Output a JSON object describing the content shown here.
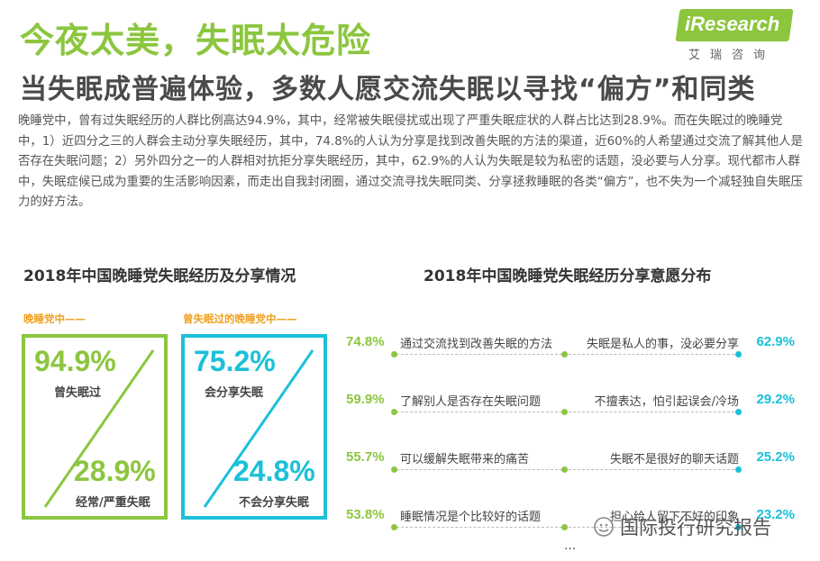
{
  "header": {
    "title": "今夜太美，失眠太危险",
    "subtitle": "当失眠成普遍体验，多数人愿交流失眠以寻找“偏方”和同类"
  },
  "logo": {
    "text": "iResearch",
    "sub": "艾瑞咨询"
  },
  "paragraph": "晚睡党中，曾有过失眠经历的人群比例高达94.9%，其中，经常被失眠侵扰或出现了严重失眠症状的人群占比达到28.9%。而在失眠过的晚睡党中，1）近四分之三的人群会主动分享失眠经历，其中，74.8%的人认为分享是找到改善失眠的方法的渠道，近60%的人希望通过交流了解其他人是否存在失眠问题；2）另外四分之一的人群相对抗拒分享失眠经历，其中，62.9%的人认为失眠是较为私密的话题，没必要与人分享。现代都市人群中，失眠症候已成为重要的生活影响因素，而走出自我封闭圈，通过交流寻找失眠同类、分享拯救睡眠的各类“偏方”，也不失为一个减轻独自失眠压力的好方法。",
  "colors": {
    "green": "#8cc63f",
    "cyan": "#1cc0d8",
    "orange": "#f0a020"
  },
  "chart_data": [
    {
      "type": "table",
      "title": "2018年中国晚睡党失眠经历及分享情况",
      "panels": [
        {
          "label": "晚睡党中——",
          "top_value": "94.9%",
          "top_label": "曾失眠过",
          "bottom_value": "28.9%",
          "bottom_label": "经常/严重失眠",
          "values": [
            94.9,
            28.9
          ]
        },
        {
          "label": "曾失眠过的晚睡党中——",
          "top_value": "75.2%",
          "top_label": "会分享失眠",
          "bottom_value": "24.8%",
          "bottom_label": "不会分享失眠",
          "values": [
            75.2,
            24.8
          ]
        }
      ]
    },
    {
      "type": "table",
      "title": "2018年中国晚睡党失眠经历分享意愿分布",
      "left": [
        {
          "label": "通过交流找到改善失眠的方法",
          "value": 74.8,
          "display": "74.8%"
        },
        {
          "label": "了解别人是否存在失眠问题",
          "value": 59.9,
          "display": "59.9%"
        },
        {
          "label": "可以缓解失眠带来的痛苦",
          "value": 55.7,
          "display": "55.7%"
        },
        {
          "label": "睡眠情况是个比较好的话题",
          "value": 53.8,
          "display": "53.8%"
        }
      ],
      "right": [
        {
          "label": "失眠是私人的事，没必要分享",
          "value": 62.9,
          "display": "62.9%"
        },
        {
          "label": "不擅表达，怕引起误会/冷场",
          "value": 29.2,
          "display": "29.2%"
        },
        {
          "label": "失眠不是很好的聊天话题",
          "value": 25.2,
          "display": "25.2%"
        },
        {
          "label": "担心给人留下不好的印象",
          "value": 23.2,
          "display": "23.2%"
        }
      ],
      "more": "..."
    }
  ],
  "watermark": "国际投行研究报告"
}
